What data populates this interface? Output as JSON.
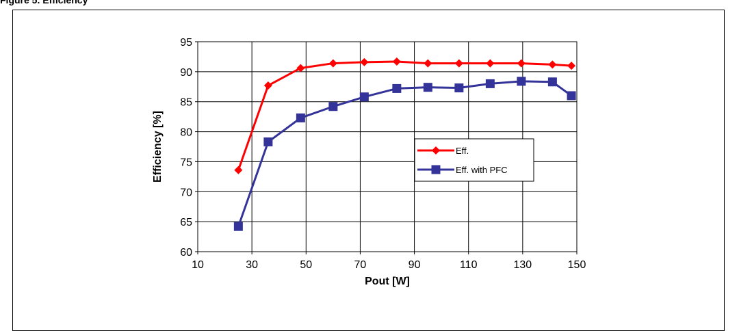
{
  "header": {
    "text": "Figure 5. Efficiency"
  },
  "chart_data": {
    "type": "line",
    "title": "",
    "xlabel": "Pout [W]",
    "ylabel": "Efficiency [%]",
    "xlim": [
      10,
      150
    ],
    "ylim": [
      60,
      95
    ],
    "xticks": [
      10,
      30,
      50,
      70,
      90,
      110,
      130,
      150
    ],
    "yticks": [
      60,
      65,
      70,
      75,
      80,
      85,
      90,
      95
    ],
    "grid": true,
    "legend_position": "right-center",
    "series": [
      {
        "name": "Eff.",
        "color": "#FF0000",
        "marker": "diamond",
        "x": [
          25,
          36,
          48,
          60,
          71.5,
          83.5,
          95,
          106.5,
          118,
          129.5,
          141,
          148
        ],
        "y": [
          73.6,
          87.7,
          90.6,
          91.4,
          91.6,
          91.7,
          91.4,
          91.4,
          91.4,
          91.4,
          91.2,
          91.0
        ]
      },
      {
        "name": "Eff. with PFC",
        "color": "#333399",
        "marker": "square",
        "x": [
          25,
          36,
          48,
          60,
          71.5,
          83.5,
          95,
          106.5,
          118,
          129.5,
          141,
          148
        ],
        "y": [
          64.2,
          78.3,
          82.3,
          84.2,
          85.8,
          87.2,
          87.4,
          87.3,
          88.0,
          88.4,
          88.3,
          86.0
        ]
      }
    ]
  }
}
